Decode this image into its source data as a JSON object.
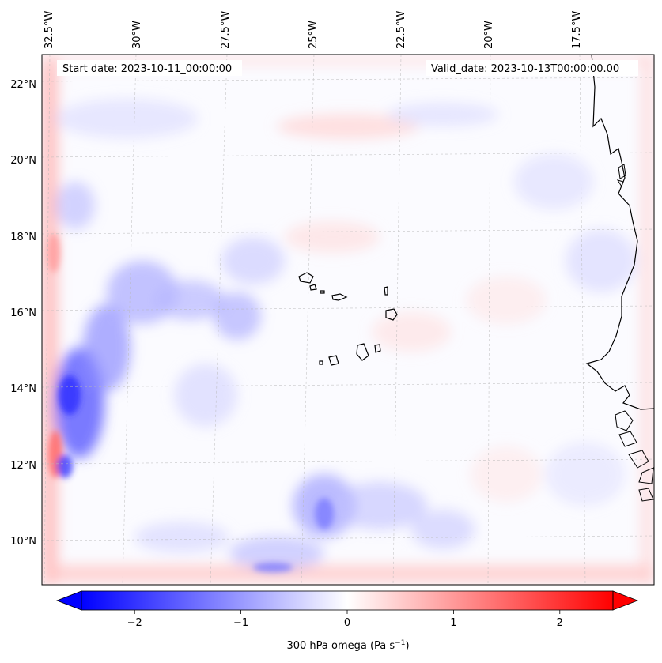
{
  "map": {
    "start_date": "Start date: 2023-10-11_00:00:00",
    "valid_date": "Valid_date: 2023-10-13T00:00:00.00",
    "lon_labels": [
      "32.5°W",
      "30°W",
      "27.5°W",
      "25°W",
      "22.5°W",
      "20°W",
      "17.5°W"
    ],
    "lat_labels": [
      "22°N",
      "20°N",
      "18°N",
      "16°N",
      "14°N",
      "12°N",
      "10°N"
    ],
    "field": "300 hPa omega",
    "colormap": "bwr"
  },
  "colorbar": {
    "ticks": [
      "−2",
      "−1",
      "0",
      "1",
      "2"
    ],
    "tick_values": [
      -2,
      -1,
      0,
      1,
      2
    ],
    "range": [
      -2.5,
      2.5
    ],
    "label_main": "300 hPa omega (Pa s",
    "label_sup": "−1",
    "label_close": ")",
    "extend": "both",
    "colors": {
      "min": "#0000ff",
      "mid": "#ffffff",
      "max": "#ff0000"
    }
  }
}
